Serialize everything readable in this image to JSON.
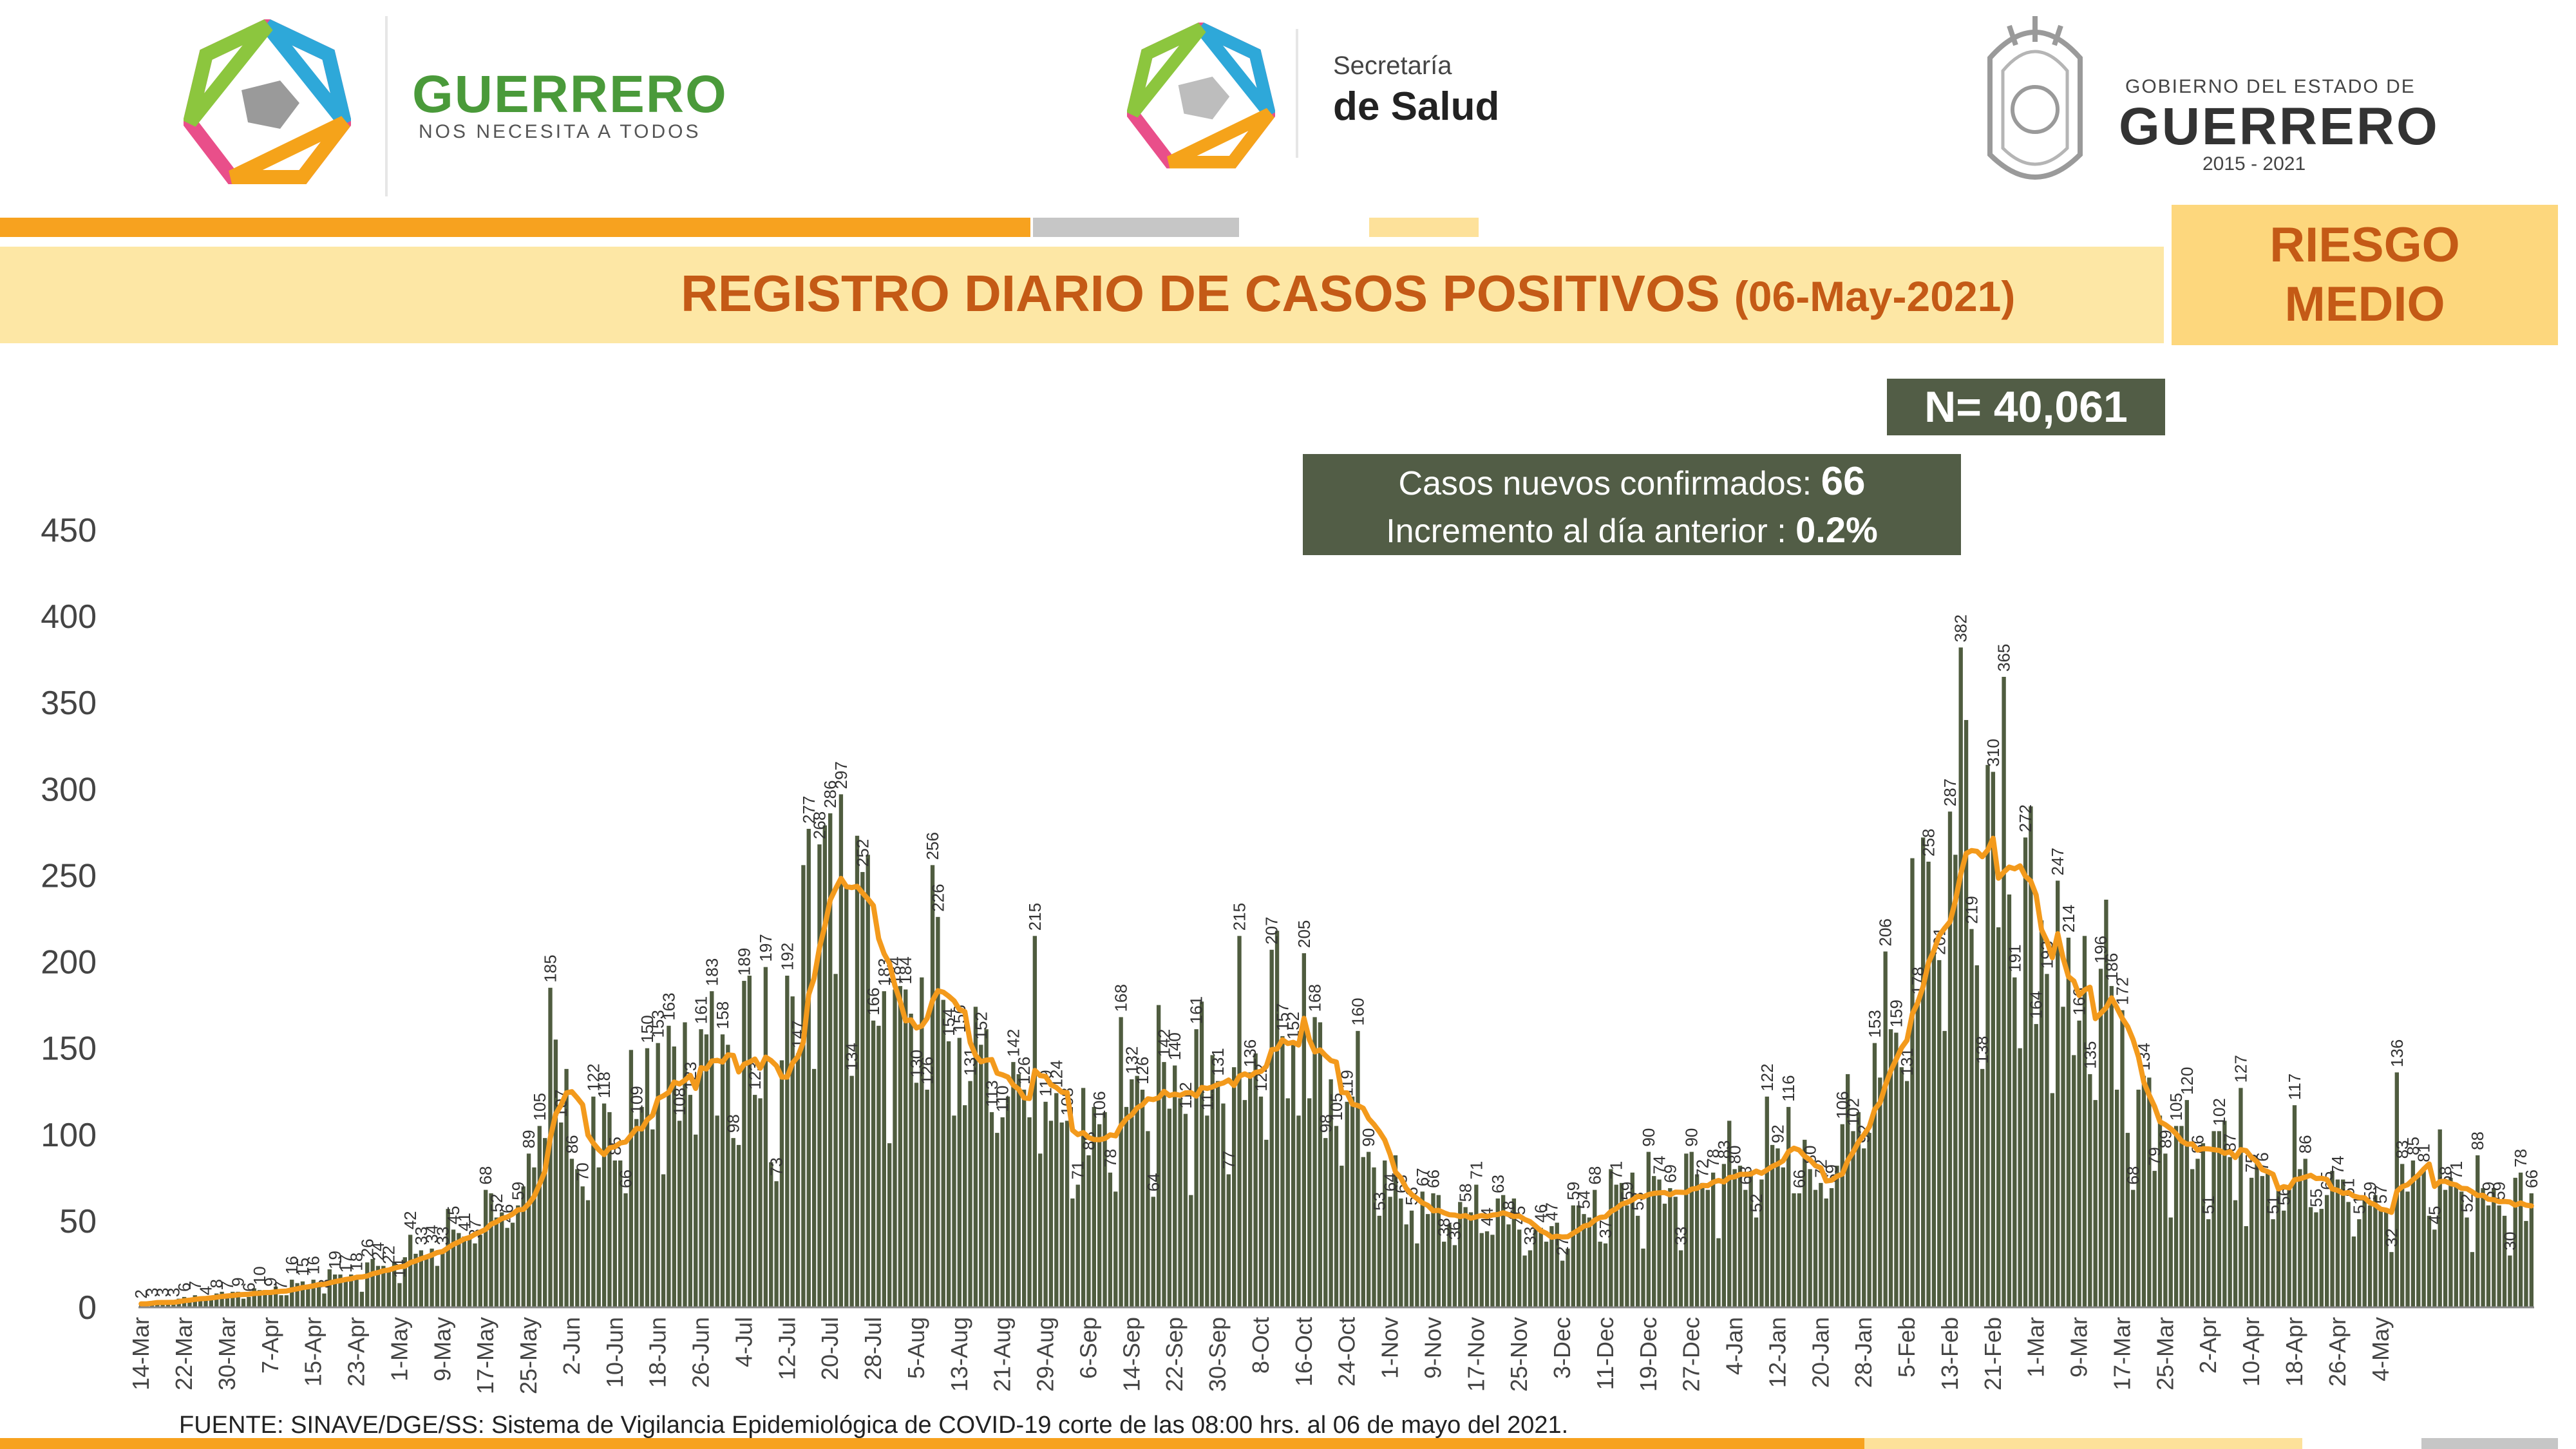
{
  "header": {
    "left_logo": {
      "name": "GUERRERO",
      "tagline": "NOS NECESITA A TODOS"
    },
    "center_logo": {
      "line1": "Secretaría",
      "line2": "de Salud"
    },
    "right_logo": {
      "line1": "GOBIERNO DEL ESTADO DE",
      "line2": "GUERRERO",
      "line3": "2015 - 2021"
    }
  },
  "title": {
    "main": "REGISTRO DIARIO DE CASOS POSITIVOS",
    "date": "(06-May-2021)"
  },
  "risk": {
    "line1": "RIESGO",
    "line2": "MEDIO"
  },
  "total": "N= 40,061",
  "new_cases": {
    "label": "Casos nuevos confirmados:",
    "value": "66",
    "increment_label": "Incremento al día anterior :",
    "increment_value": "0.2%"
  },
  "source": "FUENTE: SINAVE/DGE/SS: Sistema de Vigilancia Epidemiológica de COVID-19 corte de las 08:00 hrs. al 06 de mayo del 2021.",
  "colors": {
    "bar": "#4f5c3f",
    "line": "#f39a1c",
    "title": "#c45a16",
    "band": "#fde7a5",
    "box": "#525d46"
  },
  "chart_data": {
    "type": "bar",
    "overlay": "line (moving average)",
    "start_date": "14-Mar",
    "ylim": [
      0,
      450
    ],
    "yticks": [
      0,
      50,
      100,
      150,
      200,
      250,
      300,
      350,
      400,
      450
    ],
    "x_tick_labels": [
      "14-Mar",
      "22-Mar",
      "30-Mar",
      "7-Apr",
      "15-Apr",
      "23-Apr",
      "1-May",
      "9-May",
      "17-May",
      "25-May",
      "2-Jun",
      "10-Jun",
      "18-Jun",
      "26-Jun",
      "4-Jul",
      "12-Jul",
      "20-Jul",
      "28-Jul",
      "5-Aug",
      "13-Aug",
      "21-Aug",
      "29-Aug",
      "6-Sep",
      "14-Sep",
      "22-Sep",
      "30-Sep",
      "8-Oct",
      "16-Oct",
      "24-Oct",
      "1-Nov",
      "9-Nov",
      "17-Nov",
      "25-Nov",
      "3-Dec",
      "11-Dec",
      "19-Dec",
      "27-Dec",
      "4-Jan",
      "12-Jan",
      "20-Jan",
      "28-Jan",
      "5-Feb",
      "13-Feb",
      "21-Feb",
      "1-Mar",
      "9-Mar",
      "17-Mar",
      "25-Mar",
      "2-Apr",
      "10-Apr",
      "18-Apr",
      "26-Apr",
      "4-May"
    ],
    "anchors": [
      [
        0,
        2
      ],
      [
        8,
        5
      ],
      [
        16,
        8
      ],
      [
        24,
        10
      ],
      [
        32,
        15
      ],
      [
        40,
        20
      ],
      [
        48,
        28
      ],
      [
        56,
        40
      ],
      [
        64,
        55
      ],
      [
        72,
        70
      ],
      [
        76,
        160
      ],
      [
        80,
        90
      ],
      [
        88,
        105
      ],
      [
        96,
        130
      ],
      [
        104,
        140
      ],
      [
        112,
        150
      ],
      [
        118,
        120
      ],
      [
        121,
        170
      ],
      [
        124,
        250
      ],
      [
        128,
        240
      ],
      [
        130,
        290
      ],
      [
        132,
        260
      ],
      [
        136,
        200
      ],
      [
        142,
        160
      ],
      [
        147,
        220
      ],
      [
        150,
        140
      ],
      [
        152,
        180
      ],
      [
        154,
        150
      ],
      [
        160,
        140
      ],
      [
        164,
        120
      ],
      [
        170,
        110
      ],
      [
        176,
        100
      ],
      [
        184,
        130
      ],
      [
        192,
        130
      ],
      [
        200,
        140
      ],
      [
        205,
        140
      ],
      [
        210,
        160
      ],
      [
        216,
        140
      ],
      [
        222,
        130
      ],
      [
        227,
        110
      ],
      [
        232,
        70
      ],
      [
        237,
        60
      ],
      [
        244,
        55
      ],
      [
        252,
        60
      ],
      [
        260,
        40
      ],
      [
        268,
        55
      ],
      [
        276,
        70
      ],
      [
        284,
        70
      ],
      [
        292,
        80
      ],
      [
        300,
        85
      ],
      [
        306,
        100
      ],
      [
        310,
        70
      ],
      [
        316,
        100
      ],
      [
        324,
        160
      ],
      [
        330,
        220
      ],
      [
        334,
        260
      ],
      [
        338,
        300
      ],
      [
        342,
        240
      ],
      [
        346,
        280
      ],
      [
        350,
        240
      ],
      [
        354,
        190
      ],
      [
        358,
        160
      ],
      [
        362,
        200
      ],
      [
        366,
        180
      ],
      [
        370,
        120
      ],
      [
        374,
        110
      ],
      [
        378,
        95
      ],
      [
        382,
        100
      ],
      [
        388,
        90
      ],
      [
        394,
        70
      ],
      [
        398,
        80
      ],
      [
        404,
        75
      ],
      [
        408,
        70
      ],
      [
        412,
        65
      ],
      [
        414,
        60
      ],
      [
        418,
        55
      ],
      [
        421,
        75
      ],
      [
        425,
        80
      ],
      [
        429,
        72
      ],
      [
        433,
        65
      ],
      [
        437,
        65
      ],
      [
        440,
        62
      ],
      [
        443,
        61
      ],
      [
        444,
        66
      ]
    ],
    "peaks": [
      [
        130,
        297
      ],
      [
        124,
        277
      ],
      [
        338,
        382
      ],
      [
        346,
        365
      ],
      [
        344,
        310
      ],
      [
        336,
        287
      ],
      [
        356,
        247
      ],
      [
        147,
        256
      ],
      [
        166,
        215
      ],
      [
        204,
        215
      ],
      [
        210,
        207
      ],
      [
        216,
        205
      ],
      [
        226,
        160
      ],
      [
        76,
        185
      ],
      [
        104,
        161
      ],
      [
        96,
        153
      ],
      [
        112,
        189
      ],
      [
        116,
        197
      ],
      [
        306,
        116
      ],
      [
        390,
        127
      ],
      [
        400,
        117
      ],
      [
        419,
        136
      ]
    ],
    "n_days": 445,
    "series": [
      {
        "name": "",
        "type": "bar"
      },
      {
        "name": "",
        "type": "line"
      }
    ]
  }
}
